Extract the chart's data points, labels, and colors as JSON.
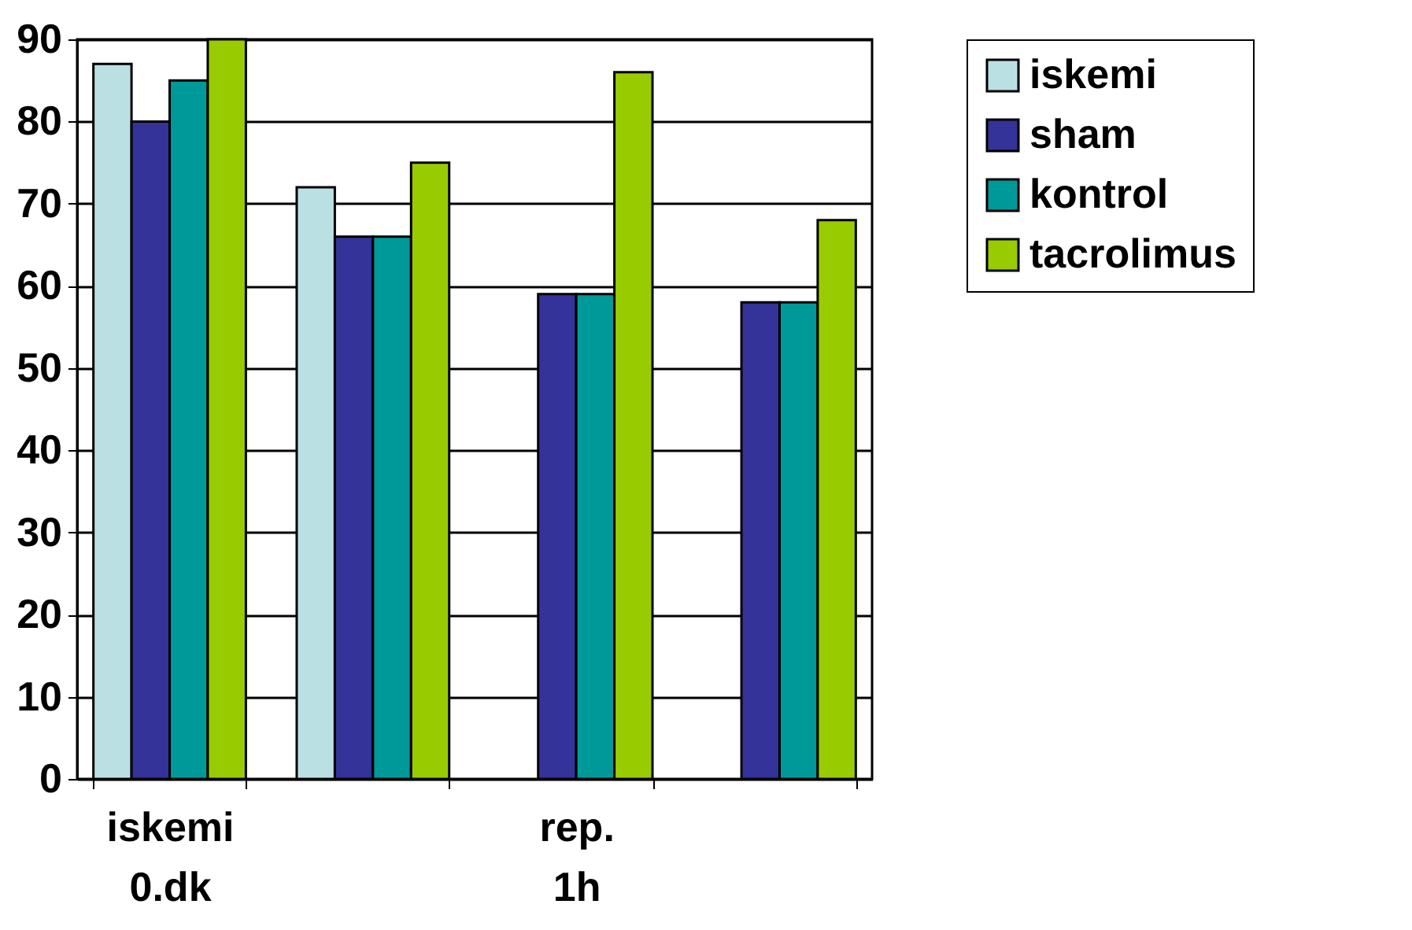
{
  "chart_data": {
    "type": "bar",
    "categories": [
      "iskemi 0.dk",
      null,
      "rep. 1h",
      null
    ],
    "series": [
      {
        "name": "iskemi",
        "color": "#bbe0e3",
        "values": [
          87,
          72,
          null,
          null
        ]
      },
      {
        "name": "sham",
        "color": "#333399",
        "values": [
          80,
          66,
          59,
          58
        ]
      },
      {
        "name": "kontrol",
        "color": "#009999",
        "values": [
          85,
          66,
          59,
          58
        ]
      },
      {
        "name": "tacrolimus",
        "color": "#99cc00",
        "values": [
          90,
          75,
          86,
          68
        ]
      }
    ],
    "ylim": [
      0,
      90
    ],
    "yticks": [
      0,
      10,
      20,
      30,
      40,
      50,
      60,
      70,
      80,
      90
    ],
    "grid": "y",
    "legend": "right"
  }
}
